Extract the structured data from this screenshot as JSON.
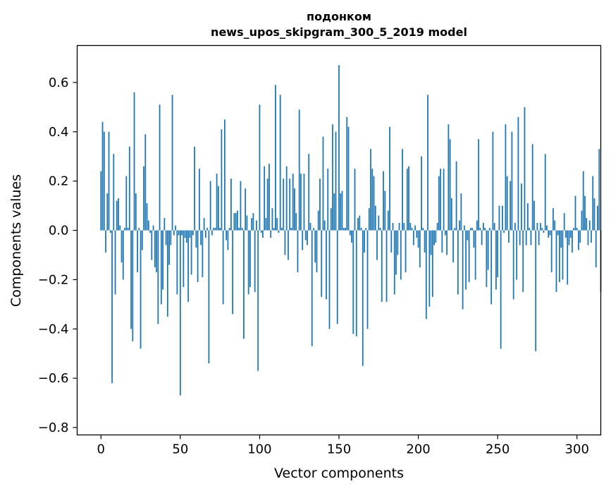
{
  "chart_data": {
    "type": "bar",
    "title": "подонком",
    "subtitle": "news_upos_skipgram_300_5_2019 model",
    "xlabel": "Vector components",
    "ylabel": "Components values",
    "xlim": [
      -15,
      315
    ],
    "ylim": [
      -0.83,
      0.75
    ],
    "xticks": [
      0,
      50,
      100,
      150,
      200,
      250,
      300
    ],
    "yticks": [
      -0.8,
      -0.6,
      -0.4,
      -0.2,
      0.0,
      0.2,
      0.4,
      0.6
    ],
    "ytick_labels": [
      "−0.8",
      "−0.6",
      "−0.4",
      "−0.2",
      "0.0",
      "0.2",
      "0.4",
      "0.6"
    ],
    "bar_color": "#1f77b4",
    "grid": false,
    "x_start": 0,
    "values": [
      0.24,
      0.44,
      0.4,
      -0.09,
      0.15,
      0.4,
      -0.01,
      -0.62,
      0.31,
      -0.26,
      0.12,
      0.13,
      0.02,
      -0.13,
      -0.2,
      0.01,
      0.22,
      0.01,
      0.34,
      -0.4,
      -0.45,
      0.56,
      0.15,
      -0.17,
      0.01,
      -0.48,
      -0.08,
      0.26,
      0.39,
      0.11,
      0.04,
      -0.01,
      -0.12,
      0.02,
      -0.15,
      -0.17,
      -0.38,
      0.51,
      -0.3,
      -0.24,
      0.05,
      -0.06,
      -0.35,
      -0.14,
      -0.06,
      0.55,
      -0.02,
      0.02,
      -0.26,
      -0.02,
      -0.67,
      -0.02,
      -0.23,
      -0.03,
      -0.05,
      -0.29,
      -0.03,
      -0.18,
      -0.02,
      0.34,
      -0.07,
      -0.21,
      0.25,
      -0.06,
      -0.19,
      0.05,
      -0.03,
      0.01,
      -0.54,
      0.2,
      -0.02,
      0.01,
      0.01,
      0.23,
      0.18,
      0.01,
      0.41,
      -0.3,
      0.45,
      -0.04,
      -0.08,
      0.01,
      0.21,
      -0.34,
      0.07,
      0.07,
      0.08,
      0.01,
      0.2,
      0.01,
      -0.44,
      0.17,
      0.06,
      -0.26,
      -0.23,
      0.05,
      0.07,
      -0.25,
      0.04,
      -0.57,
      0.51,
      -0.01,
      -0.03,
      0.26,
      0.05,
      0.21,
      0.27,
      -0.03,
      0.09,
      0.01,
      0.59,
      0.05,
      -0.01,
      0.55,
      0.01,
      0.21,
      -0.1,
      0.26,
      -0.12,
      0.21,
      0.01,
      0.23,
      0.17,
      0.07,
      -0.17,
      0.49,
      0.23,
      -0.08,
      0.23,
      -0.04,
      -0.06,
      0.31,
      0.03,
      -0.47,
      0.01,
      -0.13,
      -0.17,
      0.08,
      0.21,
      -0.27,
      0.38,
      0.04,
      -0.28,
      0.25,
      -0.4,
      0.09,
      0.43,
      0.15,
      0.4,
      -0.38,
      0.67,
      0.15,
      0.16,
      0.01,
      0.01,
      0.46,
      0.42,
      -0.02,
      -0.05,
      -0.42,
      0.25,
      -0.43,
      0.05,
      0.06,
      0.01,
      -0.55,
      -0.09,
      0.01,
      -0.4,
      0.09,
      0.33,
      0.25,
      0.22,
      0.1,
      -0.12,
      0.06,
      0.01,
      -0.29,
      0.24,
      0.16,
      -0.29,
      0.08,
      0.42,
      -0.09,
      0.03,
      -0.26,
      -0.18,
      -0.1,
      0.03,
      -0.2,
      0.33,
      0.03,
      -0.17,
      0.25,
      0.26,
      0.03,
      0.01,
      -0.06,
      0.02,
      -0.03,
      -0.07,
      -0.15,
      0.3,
      0.01,
      -0.09,
      -0.36,
      0.55,
      -0.31,
      -0.1,
      -0.27,
      -0.06,
      -0.05,
      0.03,
      0.22,
      0.25,
      -0.09,
      0.25,
      -0.02,
      -0.1,
      0.43,
      0.37,
      0.13,
      -0.13,
      0.01,
      0.28,
      -0.26,
      0.04,
      0.15,
      -0.32,
      0.02,
      -0.24,
      -0.04,
      -0.21,
      0.01,
      0.01,
      -0.07,
      -0.2,
      0.04,
      0.37,
      0.01,
      -0.06,
      0.03,
      0.01,
      -0.23,
      -0.16,
      0.01,
      -0.3,
      0.4,
      0.03,
      -0.24,
      -0.19,
      0.1,
      -0.48,
      0.1,
      -0.01,
      0.43,
      0.22,
      -0.05,
      0.2,
      0.4,
      -0.28,
      0.03,
      -0.2,
      0.46,
      -0.06,
      0.19,
      -0.25,
      0.5,
      -0.06,
      0.11,
      0.01,
      -0.06,
      0.35,
      0.12,
      -0.49,
      0.03,
      -0.06,
      0.03,
      0.01,
      -0.01,
      0.31,
      0.02,
      -0.03,
      -0.02,
      -0.17,
      0.09,
      0.04,
      -0.25,
      -0.02,
      -0.21,
      -0.07,
      -0.2,
      0.07,
      -0.03,
      -0.22,
      -0.06,
      -0.03,
      -0.09,
      0.01,
      0.14,
      0.01,
      -0.08,
      -0.05,
      0.08,
      0.24,
      0.14,
      0.05,
      -0.06,
      0.04,
      -0.05,
      0.22,
      0.13,
      -0.15,
      0.1,
      0.33,
      -0.25
    ]
  }
}
